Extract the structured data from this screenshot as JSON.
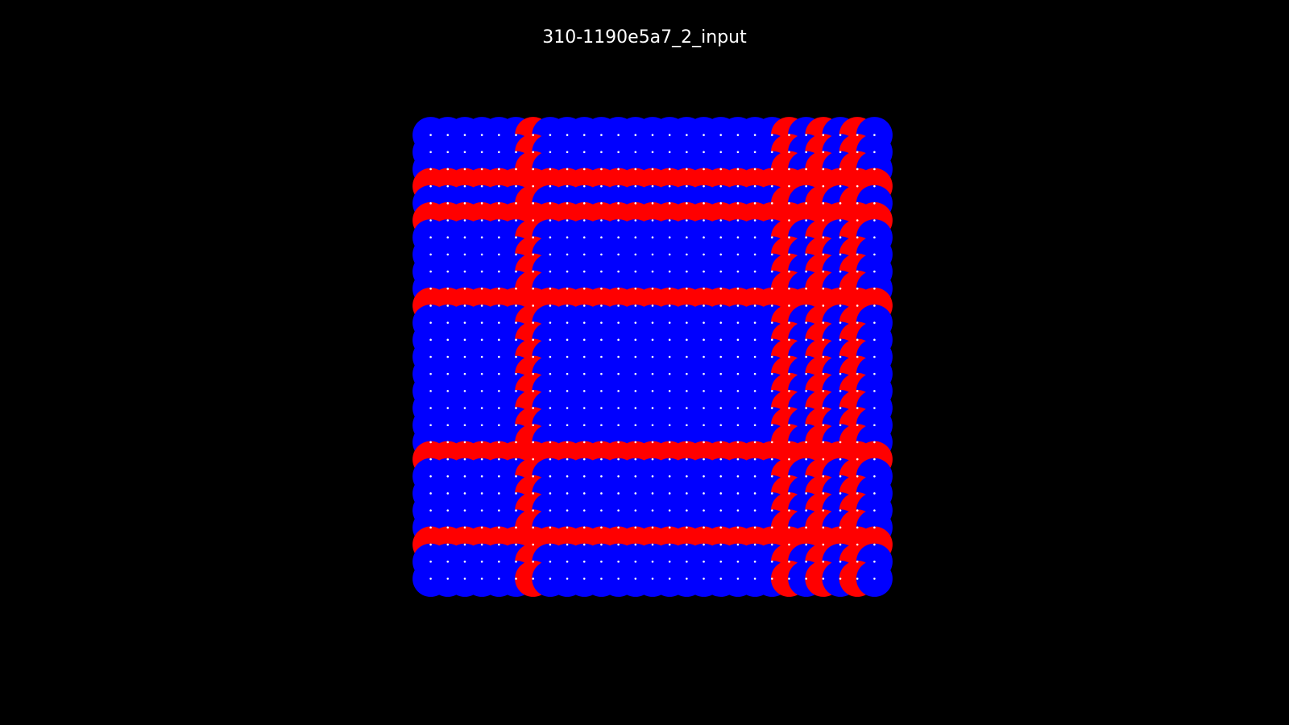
{
  "title": "310-1190e5a7_2_input",
  "grid": {
    "rows": [
      "BBBBBBRBBBBBBBBBBBBBBRBRBRB",
      "BBBBBBRBBBBBBBBBBBBBBRBRBRB",
      "BBBBBBRBBBBBBBBBBBBBBRBRBRB",
      "RRRRRRRRRRRRRRRRRRRRRRRRRRR",
      "BBBBBBRBBBBBBBBBBBBBBRBRBRB",
      "RRRRRRRRRRRRRRRRRRRRRRRRRRR",
      "BBBBBBRBBBBBBBBBBBBBBRBRBRB",
      "BBBBBBRBBBBBBBBBBBBBBRBRBRB",
      "BBBBBBRBBBBBBBBBBBBBBRBRBRB",
      "BBBBBBRBBBBBBBBBBBBBBRBRBRB",
      "RRRRRRRRRRRRRRRRRRRRRRRRRRR",
      "BBBBBBRBBBBBBBBBBBBBBRBRBRB",
      "BBBBBBRBBBBBBBBBBBBBBRBRBRB",
      "BBBBBBRBBBBBBBBBBBBBBRBRBRB",
      "BBBBBBRBBBBBBBBBBBBBBRBRBRB",
      "BBBBBBRBBBBBBBBBBBBBBRBRBRB",
      "BBBBBBRBBBBBBBBBBBBBBRBRBRB",
      "BBBBBBRBBBBBBBBBBBBBBRBRBRB",
      "BBBBBBRBBBBBBBBBBBBBBRBRBRB",
      "RRRRRRRRRRRRRRRRRRRRRRRRRRR",
      "BBBBBBRBBBBBBBBBBBBBBRBRBRB",
      "BBBBBBRBBBBBBBBBBBBBBRBRBRB",
      "BBBBBBRBBBBBBBBBBBBBBRBRBRB",
      "BBBBBBRBBBBBBBBBBBBBBRBRBRB",
      "RRRRRRRRRRRRRRRRRRRRRRRRRRR",
      "BBBBBBRBBBBBBBBBBBBBBRBRBRB",
      "BBBBBBRBBBBBBBBBBBBBBRBRBRB"
    ]
  },
  "colors": {
    "background": "#000000",
    "title": "#ffffff",
    "B": "#0000ff",
    "R": "#ff0000",
    "dot": "#ffffff"
  }
}
